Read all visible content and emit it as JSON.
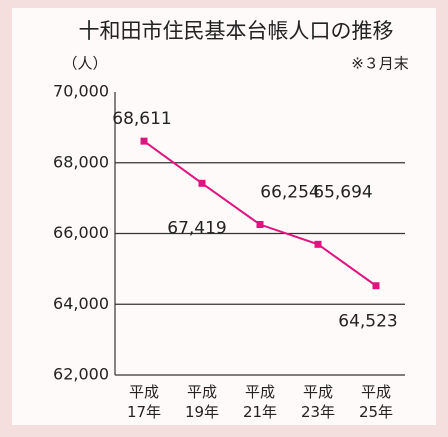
{
  "chart_data": {
    "type": "line",
    "title": "十和田市住民基本台帳人口の推移",
    "y_label": "（人）",
    "annotation": "※３月末",
    "categories": [
      "平成\n17年",
      "平成\n19年",
      "平成\n21年",
      "平成\n23年",
      "平成\n25年"
    ],
    "series": [
      {
        "color": "#e0147f",
        "values": [
          68611,
          67419,
          66254,
          65694,
          64523
        ],
        "value_labels": [
          "68,611",
          "67,419",
          "66,254",
          "65,694",
          "64,523"
        ]
      }
    ],
    "ylim": [
      62000,
      70000
    ],
    "yticks": [
      {
        "value": 62000,
        "label": "62,000"
      },
      {
        "value": 64000,
        "label": "64,000"
      },
      {
        "value": 66000,
        "label": "66,000"
      },
      {
        "value": 68000,
        "label": "68,000"
      },
      {
        "value": 70000,
        "label": "70,000"
      }
    ],
    "grid": true
  }
}
